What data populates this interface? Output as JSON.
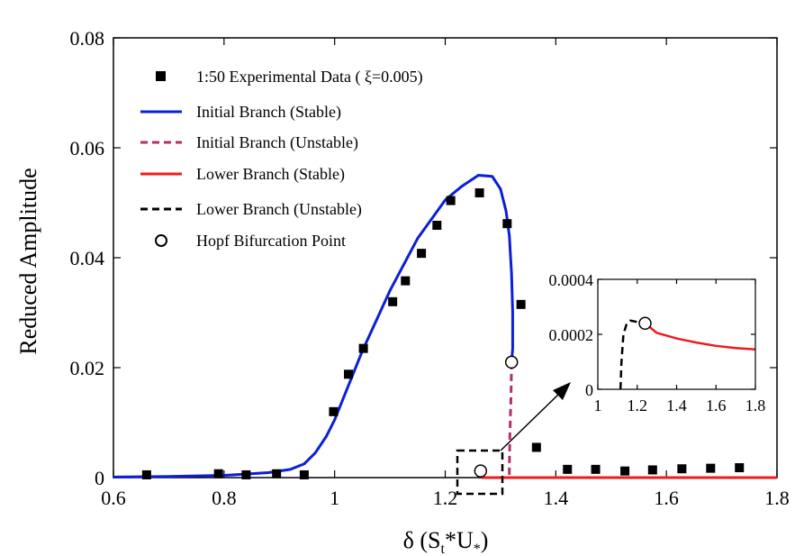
{
  "chart_data": [
    {
      "type": "line",
      "xlabel_parts": {
        "delta": "δ",
        "open": " (S",
        "sub_t": "t",
        "mid": "*U",
        "sub_star": "*",
        "close": ")"
      },
      "ylabel": "Reduced Amplitude",
      "xlim": [
        0.6,
        1.8
      ],
      "ylim": [
        0,
        0.08
      ],
      "xticks": [
        "0.6",
        "0.8",
        "1",
        "1.2",
        "1.4",
        "1.6",
        "1.8"
      ],
      "yticks": [
        "0",
        "0.02",
        "0.04",
        "0.06",
        "0.08"
      ],
      "legend_position": "top-left",
      "series": [
        {
          "name": "1:50 Experimental Data ( ξ=0.005)",
          "style": "square-marker",
          "color": "#000000",
          "x": [
            0.66,
            0.79,
            0.84,
            0.895,
            0.945,
            0.998,
            1.025,
            1.052,
            1.105,
            1.128,
            1.157,
            1.185,
            1.21,
            1.262,
            1.312,
            1.337,
            1.365,
            1.421,
            1.472,
            1.525,
            1.575,
            1.628,
            1.68,
            1.732
          ],
          "y": [
            0.0005,
            0.0007,
            0.0005,
            0.0007,
            0.0005,
            0.012,
            0.0188,
            0.0235,
            0.032,
            0.0358,
            0.0408,
            0.0459,
            0.0504,
            0.0518,
            0.0462,
            0.0315,
            0.0055,
            0.0015,
            0.0015,
            0.0012,
            0.0014,
            0.0016,
            0.0017,
            0.0018
          ]
        },
        {
          "name": "Initial Branch (Stable)",
          "style": "solid",
          "color": "#0a1fd8",
          "x": [
            0.6,
            0.7,
            0.8,
            0.88,
            0.92,
            0.945,
            0.965,
            0.985,
            1.0,
            1.02,
            1.05,
            1.1,
            1.15,
            1.2,
            1.23,
            1.26,
            1.285,
            1.3,
            1.31,
            1.316,
            1.32,
            1.322,
            1.322,
            1.32
          ],
          "y": [
            0.0001,
            0.0002,
            0.0004,
            0.0009,
            0.0015,
            0.0025,
            0.0045,
            0.0075,
            0.0105,
            0.0155,
            0.023,
            0.034,
            0.0435,
            0.0505,
            0.053,
            0.055,
            0.0548,
            0.0525,
            0.0485,
            0.044,
            0.037,
            0.03,
            0.0235,
            0.021
          ]
        },
        {
          "name": "Initial Branch (Unstable)",
          "style": "dashed",
          "color": "#b0306a",
          "x": [
            1.32,
            1.319,
            1.317,
            1.316,
            1.316
          ],
          "y": [
            0.021,
            0.015,
            0.008,
            0.002,
            0.0
          ]
        },
        {
          "name": "Lower Branch (Stable)",
          "style": "solid",
          "color": "#ee1c1c",
          "x": [
            1.265,
            1.4,
            1.6,
            1.8
          ],
          "y": [
            0.0,
            0.0,
            0.0,
            0.0
          ]
        },
        {
          "name": "Lower Branch (Unstable)",
          "style": "dashed",
          "color": "#000000",
          "x": [],
          "y": []
        },
        {
          "name": "Hopf Bifurcation Point",
          "style": "open-circle",
          "color": "#000000",
          "x": [
            1.32,
            1.264
          ],
          "y": [
            0.021,
            0.0012
          ]
        }
      ]
    },
    {
      "type": "line",
      "inset": true,
      "xlim": [
        1.0,
        1.8
      ],
      "ylim": [
        0,
        0.0004
      ],
      "xticks": [
        "1",
        "1.2",
        "1.4",
        "1.6",
        "1.8"
      ],
      "yticks": [
        "0",
        "0.0002",
        "0.0004"
      ],
      "series": [
        {
          "name": "Lower Branch (Unstable)",
          "style": "dashed",
          "color": "#000000",
          "x": [
            1.115,
            1.12,
            1.13,
            1.145,
            1.165,
            1.2,
            1.24
          ],
          "y": [
            0.0,
            0.0001,
            0.0002,
            0.000235,
            0.00025,
            0.000245,
            0.00024
          ]
        },
        {
          "name": "Lower Branch (Stable)",
          "style": "solid",
          "color": "#ee1c1c",
          "x": [
            1.24,
            1.3,
            1.4,
            1.5,
            1.6,
            1.7,
            1.8
          ],
          "y": [
            0.00024,
            0.000205,
            0.000185,
            0.00017,
            0.000158,
            0.00015,
            0.000145
          ]
        },
        {
          "name": "Hopf Bifurcation Point",
          "style": "open-circle",
          "color": "#000000",
          "x": [
            1.24
          ],
          "y": [
            0.00024
          ]
        }
      ]
    }
  ]
}
